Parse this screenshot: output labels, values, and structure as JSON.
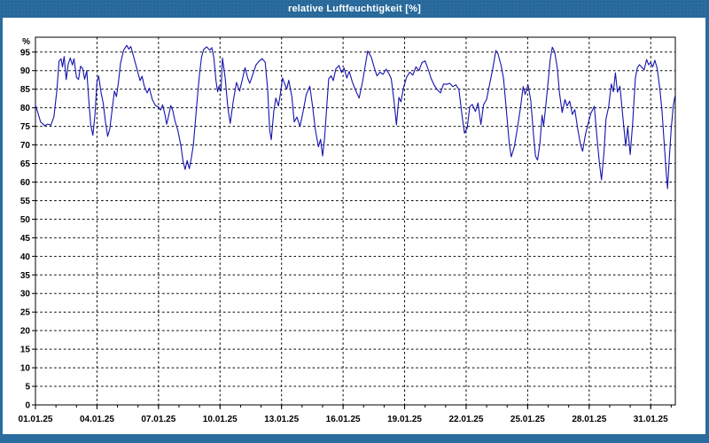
{
  "window": {
    "title": "relative Luftfeuchtigkeit [%]"
  },
  "colors": {
    "frame": "#2a6c9e",
    "frame_dots": "#24618f",
    "title_text": "#ffffff",
    "plot_bg": "#ffffff",
    "grid": "#000000",
    "text": "#000000",
    "line": "#1414ad"
  },
  "chart_data": {
    "type": "line",
    "title": "relative Luftfeuchtigkeit [%]",
    "xlabel": "",
    "ylabel": "%",
    "ylim": [
      0,
      95
    ],
    "y_axis_top": 99,
    "ytick_step": 5,
    "grid": "dashed",
    "legend": "none",
    "yticks": [
      {
        "value": 95,
        "label": "95"
      },
      {
        "value": 90,
        "label": "90"
      },
      {
        "value": 85,
        "label": "85"
      },
      {
        "value": 80,
        "label": "80"
      },
      {
        "value": 75,
        "label": "75"
      },
      {
        "value": 70,
        "label": "70"
      },
      {
        "value": 65,
        "label": "65"
      },
      {
        "value": 60,
        "label": "60"
      },
      {
        "value": 55,
        "label": "55"
      },
      {
        "value": 50,
        "label": "50"
      },
      {
        "value": 45,
        "label": "45"
      },
      {
        "value": 40,
        "label": "40"
      },
      {
        "value": 35,
        "label": "35"
      },
      {
        "value": 30,
        "label": "30"
      },
      {
        "value": 25,
        "label": "25"
      },
      {
        "value": 20,
        "label": "20"
      },
      {
        "value": 15,
        "label": "15"
      },
      {
        "value": 10,
        "label": "10"
      },
      {
        "value": 5,
        "label": "5"
      },
      {
        "value": 0,
        "label": "0"
      }
    ],
    "xticks": [
      {
        "day": 0,
        "label": "01.01.25"
      },
      {
        "day": 3,
        "label": "04.01.25"
      },
      {
        "day": 6,
        "label": "07.01.25"
      },
      {
        "day": 9,
        "label": "10.01.25"
      },
      {
        "day": 12,
        "label": "13.01.25"
      },
      {
        "day": 15,
        "label": "16.01.25"
      },
      {
        "day": 18,
        "label": "19.01.25"
      },
      {
        "day": 21,
        "label": "22.01.25"
      },
      {
        "day": 24,
        "label": "25.01.25"
      },
      {
        "day": 27,
        "label": "28.01.25"
      },
      {
        "day": 30,
        "label": "31.01.25"
      }
    ],
    "x_minor_step_days": 1,
    "x_range_days": [
      0,
      31.2
    ],
    "series": [
      {
        "name": "relative Luftfeuchtigkeit [%]",
        "points": [
          [
            0,
            80.7
          ],
          [
            0.1,
            79
          ],
          [
            0.25,
            76.2
          ],
          [
            0.45,
            75.2
          ],
          [
            0.6,
            75.6
          ],
          [
            0.75,
            75.3
          ],
          [
            0.9,
            77.5
          ],
          [
            1.05,
            85
          ],
          [
            1.15,
            92.5
          ],
          [
            1.25,
            93.2
          ],
          [
            1.32,
            91
          ],
          [
            1.4,
            93.8
          ],
          [
            1.5,
            87.6
          ],
          [
            1.6,
            91.8
          ],
          [
            1.7,
            93.4
          ],
          [
            1.8,
            91.5
          ],
          [
            1.88,
            93.2
          ],
          [
            2.0,
            88.2
          ],
          [
            2.1,
            87.6
          ],
          [
            2.2,
            91.2
          ],
          [
            2.3,
            90.6
          ],
          [
            2.4,
            87.7
          ],
          [
            2.5,
            90
          ],
          [
            2.6,
            82
          ],
          [
            2.7,
            75.2
          ],
          [
            2.8,
            72.6
          ],
          [
            2.9,
            78
          ],
          [
            3.0,
            87
          ],
          [
            3.08,
            88.6
          ],
          [
            3.2,
            84
          ],
          [
            3.3,
            81.3
          ],
          [
            3.42,
            76
          ],
          [
            3.52,
            72.3
          ],
          [
            3.62,
            74.2
          ],
          [
            3.75,
            80
          ],
          [
            3.85,
            84.5
          ],
          [
            3.95,
            83
          ],
          [
            4.05,
            87
          ],
          [
            4.15,
            92
          ],
          [
            4.3,
            95.5
          ],
          [
            4.45,
            96.8
          ],
          [
            4.55,
            95.8
          ],
          [
            4.65,
            96.5
          ],
          [
            4.8,
            93.5
          ],
          [
            4.95,
            90.5
          ],
          [
            5.1,
            87.3
          ],
          [
            5.2,
            88.5
          ],
          [
            5.3,
            86
          ],
          [
            5.45,
            84
          ],
          [
            5.55,
            85.3
          ],
          [
            5.7,
            82.2
          ],
          [
            5.85,
            80.6
          ],
          [
            6.0,
            80.2
          ],
          [
            6.1,
            79.4
          ],
          [
            6.2,
            80.8
          ],
          [
            6.3,
            78.5
          ],
          [
            6.4,
            75.6
          ],
          [
            6.5,
            78
          ],
          [
            6.6,
            80.6
          ],
          [
            6.7,
            79.2
          ],
          [
            6.8,
            76.5
          ],
          [
            6.95,
            73.8
          ],
          [
            7.1,
            69.5
          ],
          [
            7.2,
            65.5
          ],
          [
            7.3,
            63.4
          ],
          [
            7.4,
            65.8
          ],
          [
            7.5,
            63.6
          ],
          [
            7.6,
            66.5
          ],
          [
            7.7,
            70
          ],
          [
            7.8,
            76.5
          ],
          [
            7.9,
            83
          ],
          [
            8.0,
            89
          ],
          [
            8.1,
            93.6
          ],
          [
            8.2,
            95.7
          ],
          [
            8.35,
            96.4
          ],
          [
            8.5,
            95.5
          ],
          [
            8.6,
            96.2
          ],
          [
            8.7,
            93.5
          ],
          [
            8.8,
            87.5
          ],
          [
            8.88,
            84.3
          ],
          [
            8.95,
            85.8
          ],
          [
            9.05,
            84.5
          ],
          [
            9.12,
            93.4
          ],
          [
            9.25,
            88
          ],
          [
            9.38,
            80
          ],
          [
            9.5,
            75.8
          ],
          [
            9.65,
            82
          ],
          [
            9.8,
            86.8
          ],
          [
            9.95,
            84.5
          ],
          [
            10.1,
            87.8
          ],
          [
            10.22,
            90.8
          ],
          [
            10.35,
            88
          ],
          [
            10.45,
            86.6
          ],
          [
            10.6,
            89
          ],
          [
            10.75,
            91.5
          ],
          [
            10.9,
            92.5
          ],
          [
            11.05,
            93.2
          ],
          [
            11.2,
            92.3
          ],
          [
            11.32,
            85
          ],
          [
            11.42,
            74
          ],
          [
            11.5,
            71.4
          ],
          [
            11.62,
            79
          ],
          [
            11.72,
            82.6
          ],
          [
            11.85,
            80.5
          ],
          [
            11.95,
            84
          ],
          [
            12.05,
            88
          ],
          [
            12.15,
            86.5
          ],
          [
            12.25,
            85
          ],
          [
            12.35,
            87.4
          ],
          [
            12.5,
            83
          ],
          [
            12.62,
            76.2
          ],
          [
            12.75,
            77.5
          ],
          [
            12.9,
            75
          ],
          [
            13.05,
            79
          ],
          [
            13.2,
            83.5
          ],
          [
            13.38,
            85.8
          ],
          [
            13.52,
            80
          ],
          [
            13.65,
            74
          ],
          [
            13.8,
            69.5
          ],
          [
            13.9,
            71.5
          ],
          [
            14.0,
            67
          ],
          [
            14.1,
            72
          ],
          [
            14.2,
            80
          ],
          [
            14.3,
            87.8
          ],
          [
            14.42,
            88.6
          ],
          [
            14.52,
            87.3
          ],
          [
            14.65,
            90.5
          ],
          [
            14.8,
            91.4
          ],
          [
            14.92,
            89.5
          ],
          [
            15.05,
            90.7
          ],
          [
            15.18,
            88
          ],
          [
            15.3,
            89.8
          ],
          [
            15.45,
            87
          ],
          [
            15.6,
            84.8
          ],
          [
            15.78,
            82.6
          ],
          [
            15.95,
            87
          ],
          [
            16.1,
            92
          ],
          [
            16.2,
            95.3
          ],
          [
            16.3,
            94.4
          ],
          [
            16.38,
            93.6
          ],
          [
            16.5,
            91.2
          ],
          [
            16.65,
            88.6
          ],
          [
            16.8,
            89.6
          ],
          [
            16.95,
            89
          ],
          [
            17.1,
            90.4
          ],
          [
            17.25,
            89
          ],
          [
            17.35,
            87.8
          ],
          [
            17.5,
            81
          ],
          [
            17.6,
            75.4
          ],
          [
            17.72,
            82.8
          ],
          [
            17.82,
            81.6
          ],
          [
            17.95,
            85.5
          ],
          [
            18.1,
            88.3
          ],
          [
            18.25,
            89.6
          ],
          [
            18.4,
            88.8
          ],
          [
            18.55,
            91
          ],
          [
            18.7,
            90
          ],
          [
            18.85,
            92.2
          ],
          [
            19.0,
            92.6
          ],
          [
            19.15,
            90.3
          ],
          [
            19.3,
            87.8
          ],
          [
            19.45,
            86
          ],
          [
            19.6,
            84.8
          ],
          [
            19.75,
            84
          ],
          [
            19.9,
            86.4
          ],
          [
            20.05,
            86.3
          ],
          [
            20.2,
            86.6
          ],
          [
            20.35,
            85.7
          ],
          [
            20.5,
            86.2
          ],
          [
            20.65,
            84.8
          ],
          [
            20.8,
            78
          ],
          [
            20.92,
            73.2
          ],
          [
            21.05,
            74.5
          ],
          [
            21.18,
            80.3
          ],
          [
            21.3,
            80.9
          ],
          [
            21.45,
            79
          ],
          [
            21.58,
            81.3
          ],
          [
            21.72,
            75.5
          ],
          [
            21.85,
            80.8
          ],
          [
            22.0,
            82.3
          ],
          [
            22.15,
            86.5
          ],
          [
            22.3,
            90.5
          ],
          [
            22.45,
            95.4
          ],
          [
            22.55,
            94.6
          ],
          [
            22.7,
            91.5
          ],
          [
            22.82,
            88
          ],
          [
            22.95,
            80
          ],
          [
            23.1,
            70.5
          ],
          [
            23.2,
            66.8
          ],
          [
            23.35,
            69.5
          ],
          [
            23.5,
            74.5
          ],
          [
            23.65,
            80
          ],
          [
            23.78,
            85.7
          ],
          [
            23.88,
            83.6
          ],
          [
            24.02,
            86.2
          ],
          [
            24.15,
            82
          ],
          [
            24.28,
            73
          ],
          [
            24.38,
            67
          ],
          [
            24.48,
            65.9
          ],
          [
            24.6,
            70.5
          ],
          [
            24.7,
            78
          ],
          [
            24.78,
            75.2
          ],
          [
            24.88,
            80.2
          ],
          [
            25.0,
            87
          ],
          [
            25.1,
            93
          ],
          [
            25.2,
            96.3
          ],
          [
            25.32,
            95
          ],
          [
            25.45,
            90.5
          ],
          [
            25.55,
            84
          ],
          [
            25.68,
            78.7
          ],
          [
            25.82,
            82.2
          ],
          [
            25.92,
            80.5
          ],
          [
            26.05,
            81.8
          ],
          [
            26.18,
            78.2
          ],
          [
            26.3,
            79.5
          ],
          [
            26.45,
            74
          ],
          [
            26.58,
            70
          ],
          [
            26.68,
            68.3
          ],
          [
            26.82,
            72.8
          ],
          [
            26.95,
            75.8
          ],
          [
            27.08,
            78.5
          ],
          [
            27.25,
            80.4
          ],
          [
            27.38,
            72
          ],
          [
            27.5,
            65
          ],
          [
            27.6,
            60.6
          ],
          [
            27.72,
            68
          ],
          [
            27.82,
            77
          ],
          [
            27.95,
            80.3
          ],
          [
            28.08,
            86.4
          ],
          [
            28.18,
            84.3
          ],
          [
            28.28,
            89.4
          ],
          [
            28.38,
            84.2
          ],
          [
            28.5,
            85.8
          ],
          [
            28.6,
            80
          ],
          [
            28.68,
            75.3
          ],
          [
            28.78,
            69.7
          ],
          [
            28.88,
            74.8
          ],
          [
            29.0,
            67.4
          ],
          [
            29.12,
            76
          ],
          [
            29.25,
            88
          ],
          [
            29.35,
            90.8
          ],
          [
            29.45,
            91.6
          ],
          [
            29.55,
            91
          ],
          [
            29.68,
            90.2
          ],
          [
            29.8,
            93
          ],
          [
            29.9,
            91.6
          ],
          [
            30.0,
            92.2
          ],
          [
            30.1,
            91
          ],
          [
            30.2,
            92.8
          ],
          [
            30.32,
            90.5
          ],
          [
            30.45,
            85
          ],
          [
            30.55,
            79
          ],
          [
            30.65,
            71
          ],
          [
            30.75,
            63
          ],
          [
            30.82,
            58.2
          ],
          [
            30.9,
            66
          ],
          [
            31.0,
            74.5
          ],
          [
            31.1,
            80.5
          ],
          [
            31.18,
            83
          ]
        ]
      }
    ]
  }
}
